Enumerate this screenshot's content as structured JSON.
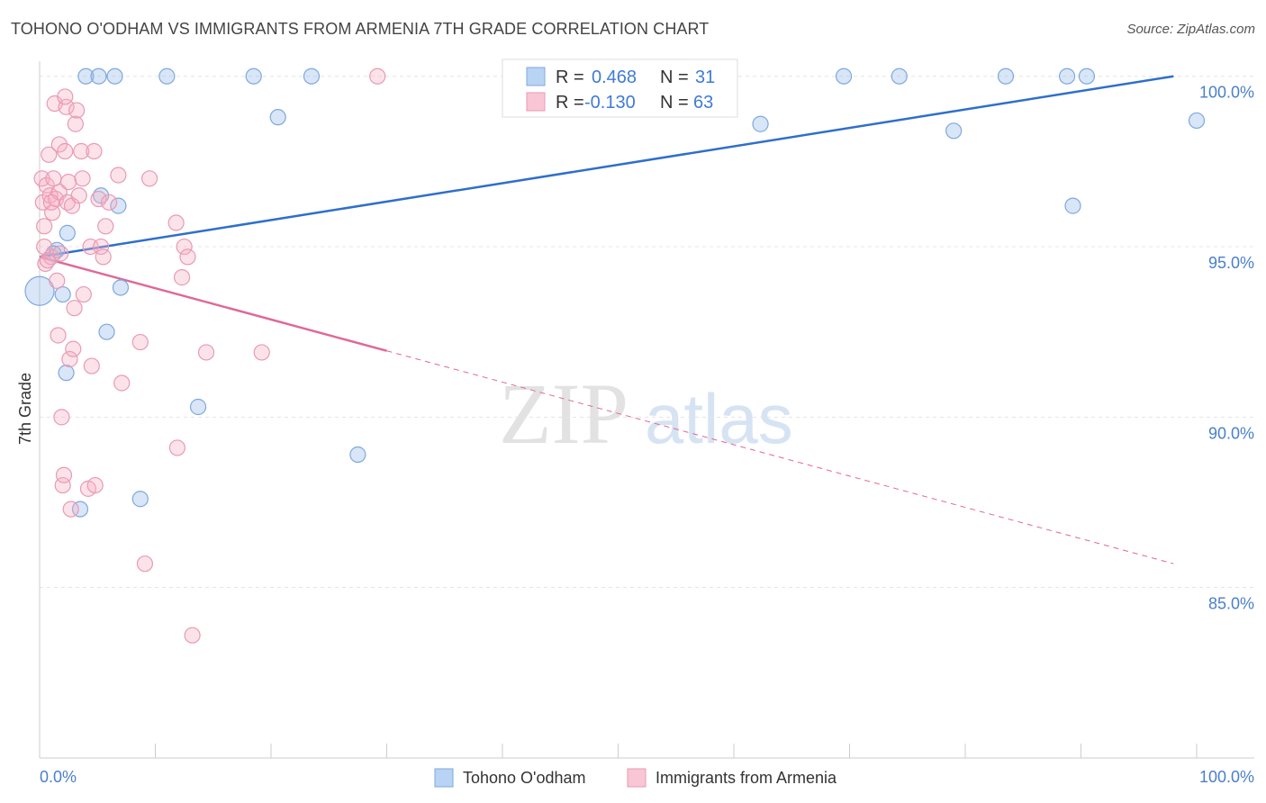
{
  "title": "TOHONO O'ODHAM VS IMMIGRANTS FROM ARMENIA 7TH GRADE CORRELATION CHART",
  "source": "Source: ZipAtlas.com",
  "watermark": {
    "zip": "ZIP",
    "atlas": "atlas"
  },
  "chart_data": {
    "type": "scatter",
    "ylabel": "7th Grade",
    "xlim": [
      0,
      100
    ],
    "ylim": [
      80,
      100.6
    ],
    "x_tick_labels": [
      "0.0%",
      "100.0%"
    ],
    "y_ticks": [
      85,
      90,
      95,
      100
    ],
    "y_tick_labels": [
      "85.0%",
      "90.0%",
      "95.0%",
      "100.0%"
    ],
    "grid": true,
    "legend_stats": [
      {
        "r_label": "R =",
        "r": "0.468",
        "n_label": "N =",
        "n": "31"
      },
      {
        "r_label": "R =",
        "r": "-0.130",
        "n_label": "N =",
        "n": "63"
      }
    ],
    "series": [
      {
        "name": "Tohono O'odham",
        "color": "#8fb8ea",
        "line_color": "#2e6fcc",
        "trend": {
          "x0": 0,
          "y0": 94.7,
          "x1": 98,
          "y1": 100.0,
          "solid_to": 98
        },
        "points": [
          [
            0,
            93.7
          ],
          [
            1.5,
            94.9
          ],
          [
            1.2,
            94.8
          ],
          [
            2,
            93.6
          ],
          [
            2.3,
            91.3
          ],
          [
            2.4,
            95.4
          ],
          [
            3.5,
            87.3
          ],
          [
            4,
            100
          ],
          [
            5.1,
            100
          ],
          [
            5.3,
            96.5
          ],
          [
            6.5,
            100
          ],
          [
            6.8,
            96.2
          ],
          [
            5.8,
            92.5
          ],
          [
            7,
            93.8
          ],
          [
            8.7,
            87.6
          ],
          [
            11,
            100
          ],
          [
            13.7,
            90.3
          ],
          [
            18.5,
            100
          ],
          [
            20.6,
            98.8
          ],
          [
            23.5,
            100
          ],
          [
            27.5,
            88.9
          ],
          [
            47.5,
            100
          ],
          [
            62.3,
            98.6
          ],
          [
            69.5,
            100
          ],
          [
            74.3,
            100
          ],
          [
            79,
            98.4
          ],
          [
            83.5,
            100
          ],
          [
            88.8,
            100
          ],
          [
            89.3,
            96.2
          ],
          [
            90.5,
            100
          ],
          [
            100,
            98.7
          ]
        ]
      },
      {
        "name": "Immigrants from Armenia",
        "color": "#f7aec4",
        "line_color": "#e06896",
        "trend": {
          "x0": 0,
          "y0": 94.7,
          "x1": 98,
          "y1": 85.7,
          "solid_to": 30
        },
        "points": [
          [
            0.2,
            97.0
          ],
          [
            0.3,
            96.3
          ],
          [
            0.4,
            95.6
          ],
          [
            0.5,
            94.5
          ],
          [
            0.6,
            96.8
          ],
          [
            0.8,
            97.7
          ],
          [
            0.9,
            96.5
          ],
          [
            1.0,
            94.7
          ],
          [
            1.1,
            96.0
          ],
          [
            1.2,
            97.0
          ],
          [
            1.3,
            99.2
          ],
          [
            1.4,
            96.4
          ],
          [
            1.5,
            94.0
          ],
          [
            1.6,
            92.4
          ],
          [
            1.7,
            98.0
          ],
          [
            1.7,
            96.6
          ],
          [
            1.8,
            94.8
          ],
          [
            1.9,
            90.0
          ],
          [
            2.0,
            88.0
          ],
          [
            2.1,
            88.3
          ],
          [
            2.2,
            97.8
          ],
          [
            2.3,
            99.1
          ],
          [
            2.4,
            96.3
          ],
          [
            2.5,
            96.9
          ],
          [
            2.6,
            91.7
          ],
          [
            2.7,
            87.3
          ],
          [
            2.8,
            96.2
          ],
          [
            2.9,
            92.0
          ],
          [
            3.0,
            93.2
          ],
          [
            3.1,
            98.6
          ],
          [
            3.2,
            99.0
          ],
          [
            3.4,
            96.5
          ],
          [
            3.6,
            97.8
          ],
          [
            3.7,
            97.0
          ],
          [
            3.8,
            93.6
          ],
          [
            4.2,
            87.9
          ],
          [
            4.4,
            95.0
          ],
          [
            4.5,
            91.5
          ],
          [
            4.7,
            97.8
          ],
          [
            4.8,
            88.0
          ],
          [
            5.1,
            96.4
          ],
          [
            5.3,
            95.0
          ],
          [
            5.5,
            94.7
          ],
          [
            5.7,
            95.6
          ],
          [
            6.0,
            96.3
          ],
          [
            6.8,
            97.1
          ],
          [
            7.1,
            91.0
          ],
          [
            8.7,
            92.2
          ],
          [
            9.1,
            85.7
          ],
          [
            9.5,
            97.0
          ],
          [
            11.8,
            95.7
          ],
          [
            11.9,
            89.1
          ],
          [
            12.3,
            94.1
          ],
          [
            12.5,
            95.0
          ],
          [
            12.8,
            94.7
          ],
          [
            13.2,
            83.6
          ],
          [
            14.4,
            91.9
          ],
          [
            19.2,
            91.9
          ],
          [
            29.2,
            100
          ],
          [
            0.4,
            95.0
          ],
          [
            0.7,
            94.6
          ],
          [
            1.0,
            96.3
          ],
          [
            2.2,
            99.4
          ]
        ]
      }
    ]
  }
}
